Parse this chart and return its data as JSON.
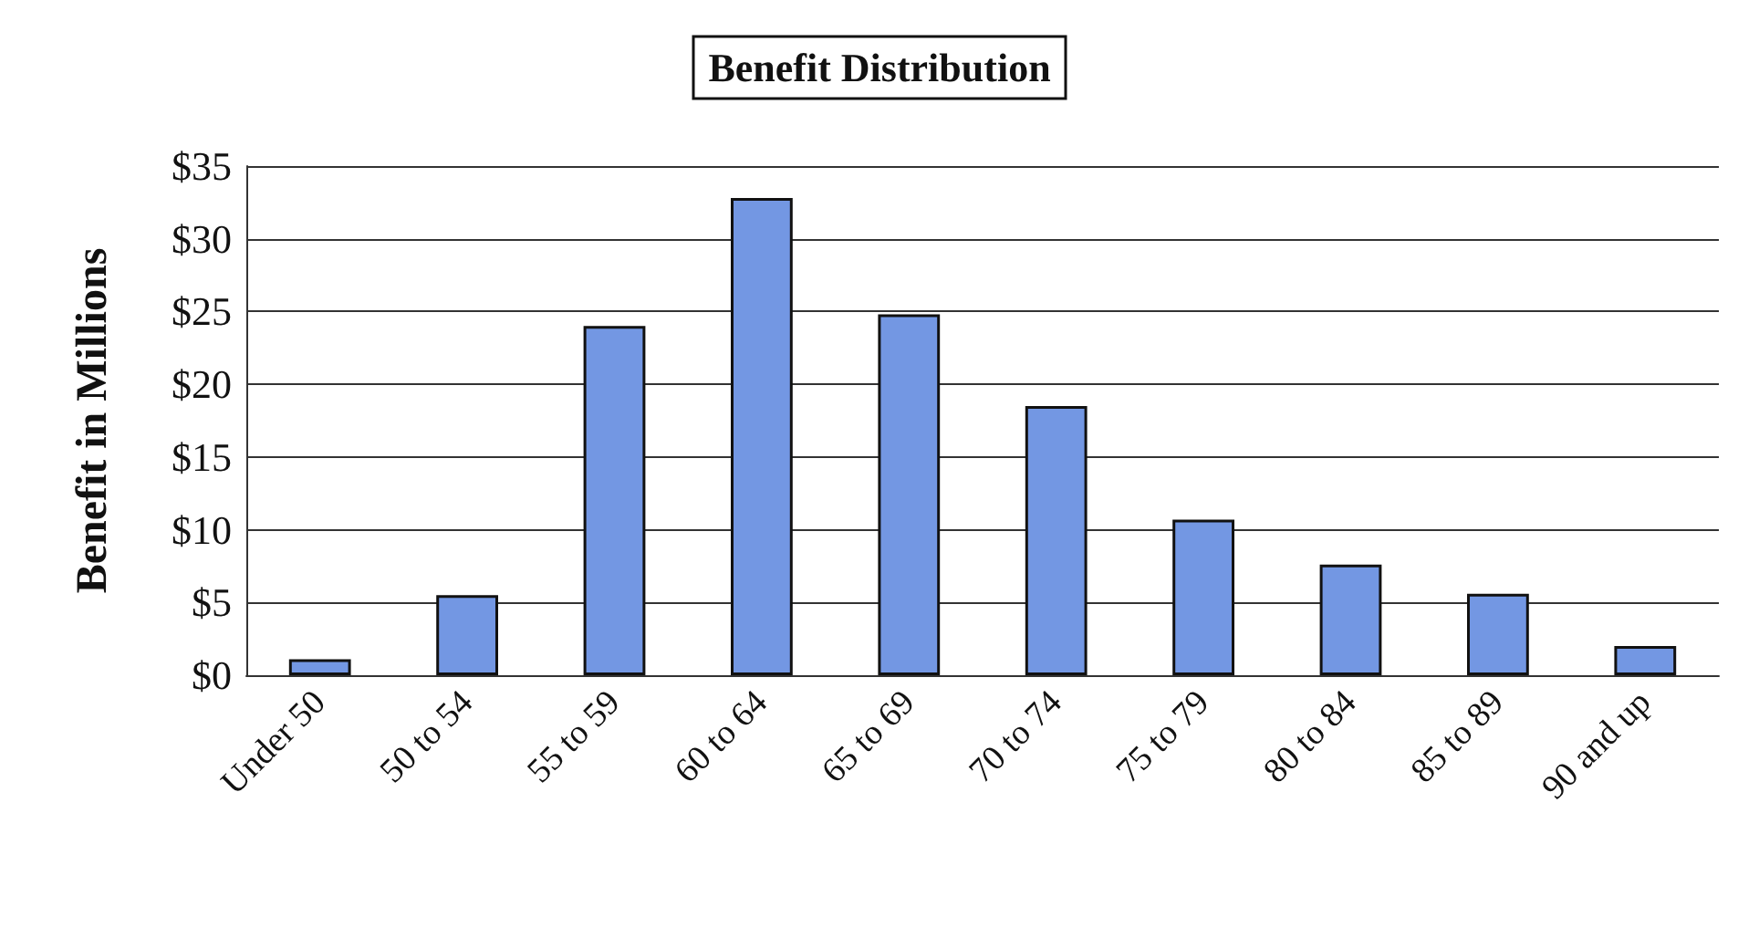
{
  "chart_data": {
    "type": "bar",
    "title": "Benefit Distribution",
    "ylabel": "Benefit in Millions",
    "categories": [
      "Under 50",
      "50 to 54",
      "55 to 59",
      "60 to 64",
      "65 to 69",
      "70 to 74",
      "75 to 79",
      "80 to 84",
      "85 to 89",
      "90 and up"
    ],
    "values": [
      1.1,
      5.5,
      24.0,
      32.8,
      24.8,
      18.5,
      10.7,
      7.6,
      5.6,
      2.0
    ],
    "color": "#7397e3",
    "ylim": [
      0,
      35
    ],
    "yticks": [
      {
        "value": 0,
        "label": "$0"
      },
      {
        "value": 5,
        "label": "$5"
      },
      {
        "value": 10,
        "label": "$10"
      },
      {
        "value": 15,
        "label": "$15"
      },
      {
        "value": 20,
        "label": "$20"
      },
      {
        "value": 25,
        "label": "$25"
      },
      {
        "value": 30,
        "label": "$30"
      },
      {
        "value": 35,
        "label": "$35"
      }
    ],
    "grid": "y"
  }
}
